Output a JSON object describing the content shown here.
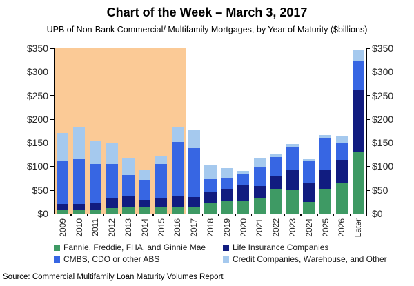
{
  "page": {
    "title": "Chart of the Week – March 3, 2017",
    "subtitle": "UPB of Non-Bank Commercial/ Multifamily Mortgages, by Year of Maturity ($billions)",
    "source": "Source: Commercial Multifamily Loan Maturity Volumes Report"
  },
  "chart_data": {
    "type": "bar",
    "stacked": true,
    "title": "Chart of the Week – March 3, 2017",
    "subtitle": "UPB of Non-Bank Commercial/ Multifamily Mortgages, by Year of Maturity ($billions)",
    "categories": [
      "2009",
      "2010",
      "2011",
      "2012",
      "2013",
      "2014",
      "2015",
      "2016",
      "2017",
      "2018",
      "2019",
      "2020",
      "2021",
      "2022",
      "2023",
      "2024",
      "2025",
      "2026",
      "Later"
    ],
    "series": [
      {
        "name": "Fannie, Freddie, FHA, and Ginnie Mae",
        "color": "#3E9A64",
        "values": [
          7,
          7,
          8,
          12,
          13,
          13,
          13,
          14,
          13,
          22,
          27,
          28,
          34,
          52,
          50,
          25,
          52,
          65,
          130
        ]
      },
      {
        "name": "Life Insurance Companies",
        "color": "#111C80",
        "values": [
          13,
          14,
          15,
          20,
          24,
          16,
          19,
          23,
          22,
          24,
          26,
          33,
          24,
          27,
          43,
          39,
          40,
          49,
          132
        ]
      },
      {
        "name": "CMBS, CDO or other ABS",
        "color": "#3766E3",
        "values": [
          93,
          95,
          82,
          73,
          44,
          42,
          73,
          114,
          104,
          27,
          21,
          23,
          40,
          41,
          49,
          48,
          68,
          35,
          61
        ]
      },
      {
        "name": "Credit Companies, Warehouse, and Other",
        "color": "#A5C9EE",
        "values": [
          57,
          67,
          48,
          45,
          37,
          21,
          16,
          32,
          37,
          31,
          22,
          7,
          20,
          7,
          5,
          5,
          6,
          14,
          23
        ]
      }
    ],
    "stack_order_note": "bottom to top: Fannie/Freddie/FHA/Ginnie Mae, Life Insurance, CMBS/CDO/ABS, Credit Companies",
    "ylim": [
      0,
      350
    ],
    "ytick_step": 50,
    "ytick_labels": [
      "$0",
      "$50",
      "$100",
      "$150",
      "$200",
      "$250",
      "$300",
      "$350"
    ],
    "y_axis_sides": "both",
    "grid": false,
    "legend_position": "bottom",
    "highlight_region": {
      "first_category": "2009",
      "last_category": "2016",
      "color": "#FBCA96"
    }
  }
}
